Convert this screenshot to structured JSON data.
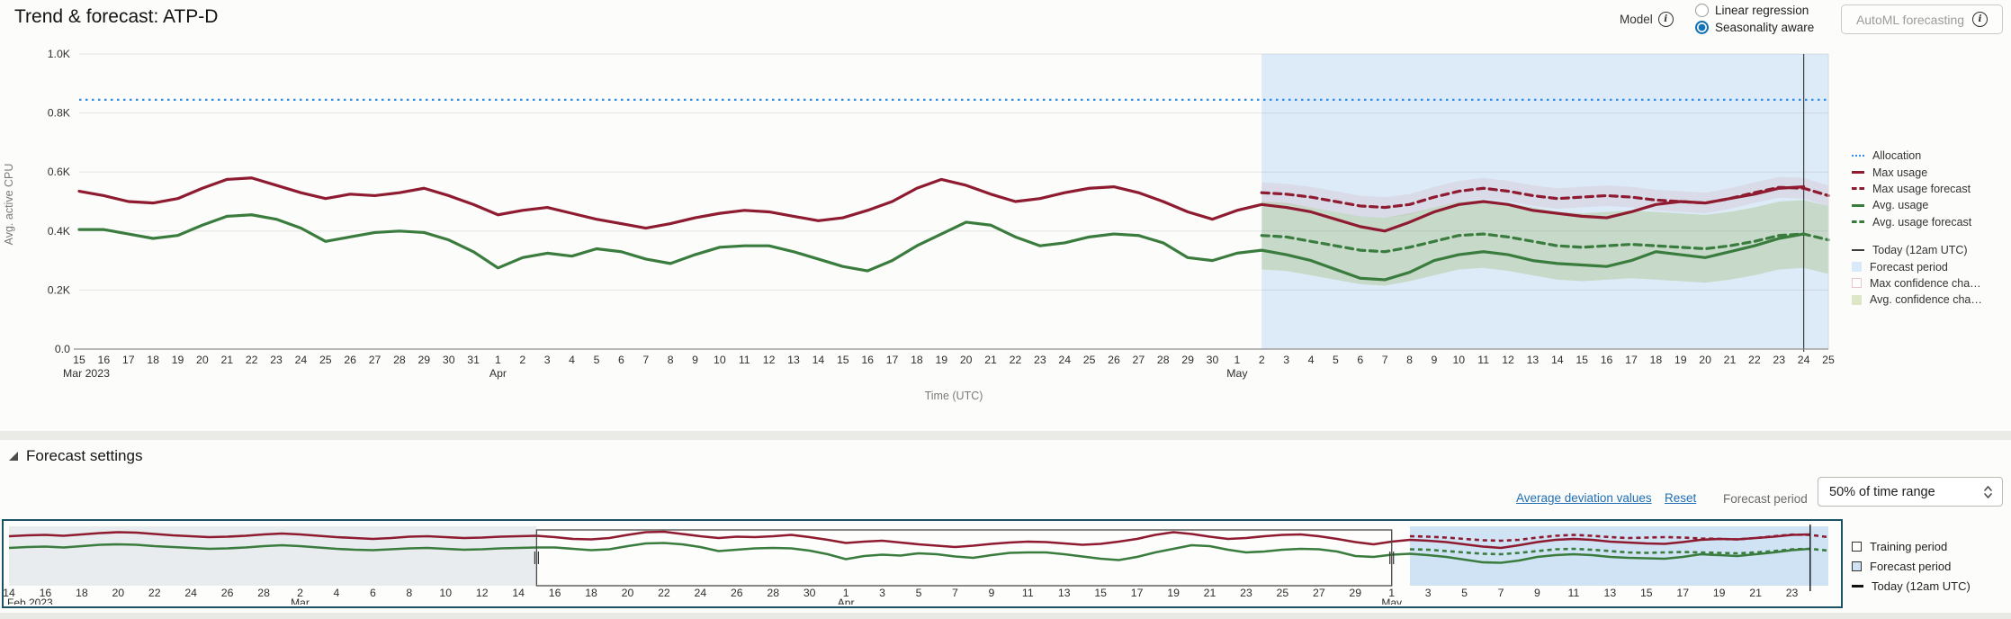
{
  "header": {
    "title": "Trend & forecast: ATP-D",
    "model_label": "Model",
    "radio_options": [
      {
        "label": "Linear regression",
        "selected": false
      },
      {
        "label": "Seasonality aware",
        "selected": true
      }
    ],
    "automl_button": "AutoML forecasting"
  },
  "forecast_settings": {
    "header": "Forecast settings",
    "average_deviation_link": "Average deviation values",
    "reset_link": "Reset",
    "forecast_period_label": "Forecast period",
    "forecast_period_value": "50% of time range"
  },
  "colors": {
    "max_usage": "#8e1b30",
    "avg_usage": "#3a7c3e",
    "allocation": "#2e8ce6",
    "forecast_bg": "#ddebf8",
    "avg_band": "rgba(150,180,95,0.30)",
    "max_band": "rgba(205,130,140,0.14)",
    "today_line": "#3c3c3c",
    "navigator_forecast_bg": "#cfe3f4",
    "navigator_dim_bg": "#e9ecef",
    "navigator_border": "#1b5364",
    "accent_blue": "#1272b6",
    "link": "#1f6eb4"
  },
  "chart_data": [
    {
      "type": "line",
      "name": "trend-forecast-chart",
      "ylabel": "Avg. active CPU",
      "xlabel": "Time (UTC)",
      "ylim": [
        0,
        1000
      ],
      "y_ticks": [
        {
          "label": "1.0K",
          "value": 1000
        },
        {
          "label": "0.8K",
          "value": 800
        },
        {
          "label": "0.6K",
          "value": 600
        },
        {
          "label": "0.4K",
          "value": 400
        },
        {
          "label": "0.2K",
          "value": 200
        },
        {
          "label": "0.0",
          "value": 0
        }
      ],
      "x_tick_labels": [
        "15",
        "16",
        "17",
        "18",
        "19",
        "20",
        "21",
        "22",
        "23",
        "24",
        "25",
        "26",
        "27",
        "28",
        "29",
        "30",
        "31",
        "1",
        "2",
        "3",
        "4",
        "5",
        "6",
        "7",
        "8",
        "9",
        "10",
        "11",
        "12",
        "13",
        "14",
        "15",
        "16",
        "17",
        "18",
        "19",
        "20",
        "21",
        "22",
        "23",
        "24",
        "25",
        "26",
        "27",
        "28",
        "29",
        "30",
        "1",
        "2",
        "3",
        "4",
        "5",
        "6",
        "7",
        "8",
        "9",
        "10",
        "11",
        "12",
        "13",
        "14",
        "15",
        "16",
        "17",
        "18",
        "19",
        "20",
        "21",
        "22",
        "23",
        "24",
        "25"
      ],
      "x_month_labels": [
        {
          "index": 0,
          "label": "Mar 2023"
        },
        {
          "index": 17,
          "label": "Apr"
        },
        {
          "index": 47,
          "label": "May"
        }
      ],
      "allocation_value": 845,
      "today_index": 70,
      "forecast_start_index": 48,
      "series": [
        {
          "name": "Max usage",
          "style": "solid",
          "color": "#8e1b30",
          "start": 0,
          "values": [
            535,
            520,
            500,
            495,
            510,
            545,
            575,
            580,
            555,
            530,
            510,
            525,
            520,
            530,
            545,
            520,
            490,
            455,
            470,
            480,
            460,
            440,
            425,
            410,
            425,
            445,
            460,
            470,
            465,
            450,
            435,
            445,
            470,
            500,
            545,
            575,
            555,
            525,
            500,
            510,
            530,
            545,
            550,
            530,
            500,
            465,
            440,
            470,
            490,
            480,
            465,
            440,
            415,
            400,
            430,
            465,
            490,
            500,
            490,
            470,
            460,
            450,
            445,
            465,
            490,
            500,
            495,
            510,
            525,
            545,
            550
          ]
        },
        {
          "name": "Avg. usage",
          "style": "solid",
          "color": "#3a7c3e",
          "start": 0,
          "values": [
            405,
            405,
            390,
            375,
            385,
            420,
            450,
            455,
            440,
            410,
            365,
            380,
            395,
            400,
            395,
            370,
            330,
            275,
            310,
            325,
            315,
            340,
            330,
            305,
            290,
            320,
            345,
            350,
            350,
            330,
            305,
            280,
            265,
            300,
            350,
            390,
            430,
            420,
            380,
            350,
            360,
            380,
            390,
            385,
            360,
            310,
            300,
            325,
            335,
            320,
            300,
            270,
            240,
            235,
            260,
            300,
            320,
            330,
            320,
            300,
            290,
            285,
            280,
            300,
            330,
            320,
            310,
            330,
            350,
            375,
            390
          ]
        },
        {
          "name": "Max usage forecast",
          "style": "dashed",
          "color": "#8e1b30",
          "start": 48,
          "band": 35,
          "values": [
            530,
            525,
            515,
            500,
            485,
            480,
            490,
            515,
            535,
            545,
            535,
            520,
            510,
            515,
            520,
            515,
            505,
            500,
            495,
            510,
            530,
            548,
            545,
            520
          ]
        },
        {
          "name": "Avg. usage forecast",
          "style": "dashed",
          "color": "#3a7c3e",
          "start": 48,
          "band": 115,
          "values": [
            385,
            380,
            365,
            350,
            335,
            330,
            345,
            365,
            385,
            390,
            380,
            365,
            350,
            345,
            350,
            355,
            350,
            345,
            340,
            350,
            365,
            385,
            390,
            370
          ]
        }
      ],
      "legend": [
        {
          "swatch": "dotted",
          "color": "#2e8ce6",
          "label": "Allocation"
        },
        {
          "swatch": "solid",
          "color": "#8e1b30",
          "label": "Max usage"
        },
        {
          "swatch": "dashed",
          "color": "#8e1b30",
          "label": "Max usage forecast"
        },
        {
          "swatch": "solid",
          "color": "#3a7c3e",
          "label": "Avg. usage"
        },
        {
          "swatch": "dashed",
          "color": "#3a7c3e",
          "label": "Avg. usage forecast"
        },
        {
          "swatch": "thinline",
          "color": "#3c3c3c",
          "label": "Today (12am UTC)",
          "gap": true
        },
        {
          "swatch": "box",
          "fill": "#d8e9f9",
          "border": "#d8e9f9",
          "label": "Forecast period"
        },
        {
          "swatch": "box",
          "fill": "#ffffff",
          "border": "#e8c6cb",
          "label": "Max confidence cha…"
        },
        {
          "swatch": "box",
          "fill": "#dbe7c8",
          "border": "#dbe7c8",
          "label": "Avg. confidence cha…"
        }
      ]
    },
    {
      "type": "line",
      "name": "training-navigator-chart",
      "total_days": 100,
      "tick_day_step": 2,
      "today_day": 99,
      "training_window_days": [
        29,
        76
      ],
      "forecast_window_days": [
        77,
        100
      ],
      "x_tick_labels": [
        "14",
        "16",
        "18",
        "20",
        "22",
        "24",
        "26",
        "28",
        "2",
        "4",
        "6",
        "8",
        "10",
        "12",
        "14",
        "16",
        "18",
        "20",
        "22",
        "24",
        "26",
        "28",
        "30",
        "1",
        "3",
        "5",
        "7",
        "9",
        "11",
        "13",
        "15",
        "17",
        "19",
        "21",
        "23",
        "25",
        "27",
        "29",
        "1",
        "3",
        "5",
        "7",
        "9",
        "11",
        "13",
        "15",
        "17",
        "19",
        "21",
        "23"
      ],
      "x_month_labels": [
        {
          "index": 0,
          "label": "Feb 2023"
        },
        {
          "index": 8,
          "label": "Mar"
        },
        {
          "index": 23,
          "label": "Apr"
        },
        {
          "index": 38,
          "label": "May"
        }
      ],
      "pre_series": {
        "max_usage": [
          530,
          540,
          545,
          535,
          550,
          565,
          575,
          570,
          555,
          540,
          530,
          520,
          525,
          535,
          550,
          560,
          550,
          535,
          520,
          510,
          500,
          510,
          525,
          530,
          520,
          510,
          515,
          525,
          530
        ],
        "avg_usage": [
          400,
          410,
          415,
          405,
          420,
          435,
          440,
          435,
          420,
          410,
          400,
          390,
          395,
          405,
          420,
          430,
          420,
          405,
          390,
          380,
          375,
          385,
          395,
          400,
          390,
          380,
          385,
          395,
          400
        ]
      },
      "legend": [
        {
          "swatch": "box",
          "fill": "#ffffff",
          "border": "#333333",
          "label": "Training period"
        },
        {
          "swatch": "box",
          "fill": "#cfe3f4",
          "border": "#333333",
          "label": "Forecast period"
        },
        {
          "swatch": "thickline",
          "color": "#111111",
          "label": "Today (12am UTC)"
        }
      ]
    }
  ]
}
